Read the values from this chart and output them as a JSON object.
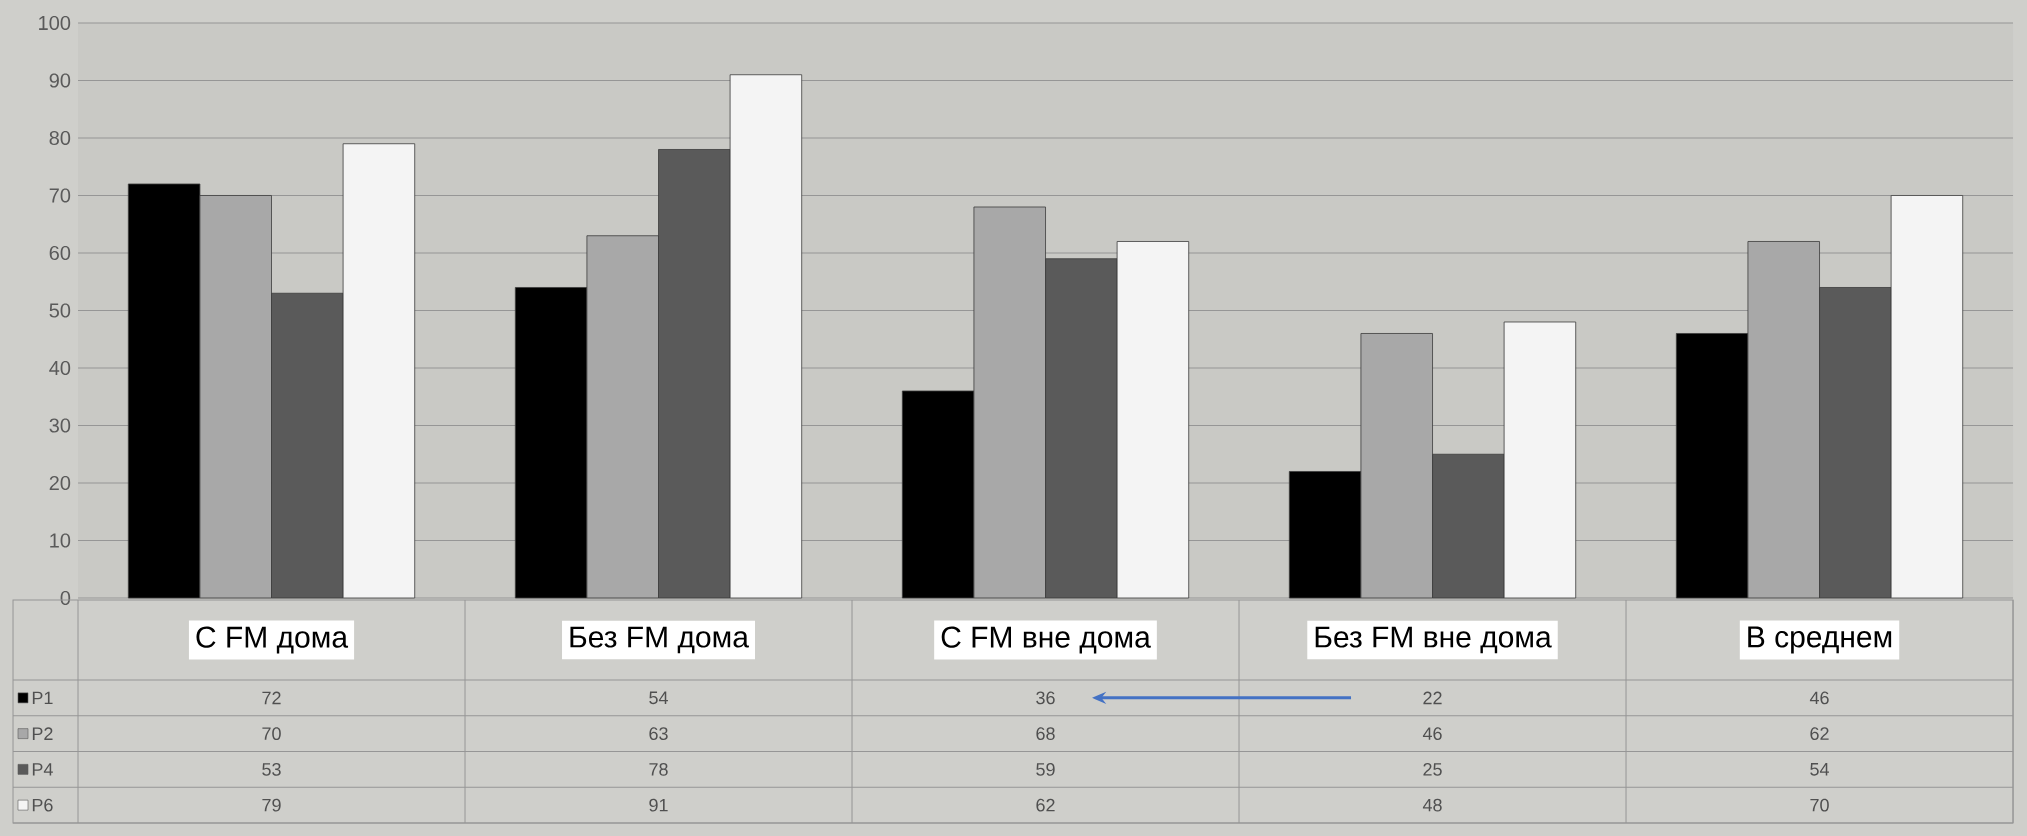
{
  "chart_data": {
    "type": "bar",
    "categories": [
      "С FM дома",
      "Без FM дома",
      "С FM вне дома",
      "Без FM вне дома",
      "В среднем"
    ],
    "series": [
      {
        "name": "P1",
        "color": "#000000",
        "values": [
          72,
          54,
          36,
          22,
          46
        ]
      },
      {
        "name": "P2",
        "color": "#a8a8a8",
        "values": [
          70,
          63,
          68,
          46,
          62
        ]
      },
      {
        "name": "P4",
        "color": "#5a5a5a",
        "values": [
          53,
          78,
          59,
          25,
          54
        ]
      },
      {
        "name": "P6",
        "color": "#f4f4f4",
        "values": [
          79,
          91,
          62,
          48,
          70
        ]
      }
    ],
    "ylim": [
      0,
      100
    ],
    "yticks": [
      0,
      10,
      20,
      30,
      40,
      50,
      60,
      70,
      80,
      90,
      100
    ],
    "grid": "y",
    "legend": "bottom",
    "data_labels": true
  }
}
